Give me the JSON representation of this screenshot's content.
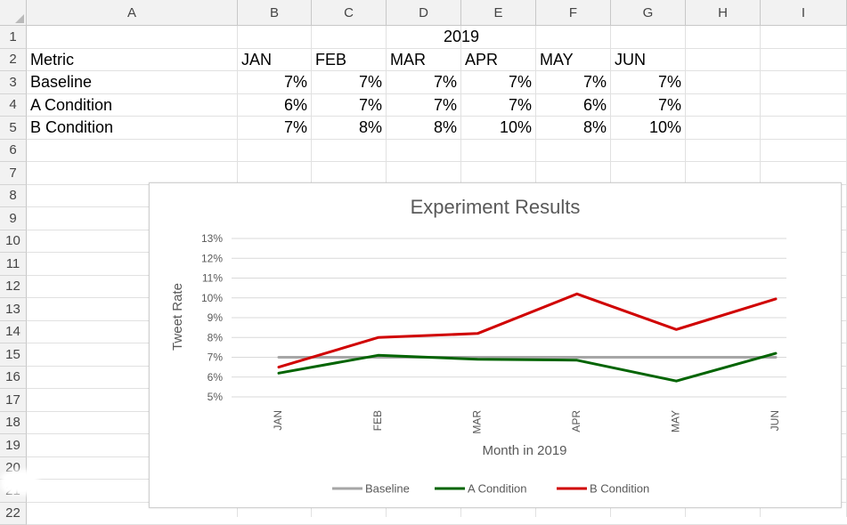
{
  "sheet": {
    "columns": [
      "A",
      "B",
      "C",
      "D",
      "E",
      "F",
      "G",
      "H",
      "I"
    ],
    "rows": [
      "1",
      "2",
      "3",
      "4",
      "5",
      "6",
      "7",
      "8",
      "9",
      "10",
      "11",
      "12",
      "13",
      "14",
      "15",
      "16",
      "17",
      "18",
      "19",
      "20",
      "21",
      "22"
    ],
    "year_title": "2019",
    "header_label": "Metric",
    "months": [
      "JAN",
      "FEB",
      "MAR",
      "APR",
      "MAY",
      "JUN"
    ],
    "data_rows": [
      {
        "label": "Baseline",
        "values": [
          "7%",
          "7%",
          "7%",
          "7%",
          "7%",
          "7%"
        ]
      },
      {
        "label": "A Condition",
        "values": [
          "6%",
          "7%",
          "7%",
          "7%",
          "6%",
          "7%"
        ]
      },
      {
        "label": "B Condition",
        "values": [
          "7%",
          "8%",
          "8%",
          "10%",
          "8%",
          "10%"
        ]
      }
    ]
  },
  "chart_data": {
    "type": "line",
    "title": "Experiment Results",
    "xlabel": "Month in 2019",
    "ylabel": "Tweet Rate",
    "categories": [
      "JAN",
      "FEB",
      "MAR",
      "APR",
      "MAY",
      "JUN"
    ],
    "yticks": [
      "5%",
      "6%",
      "7%",
      "8%",
      "9%",
      "10%",
      "11%",
      "12%",
      "13%"
    ],
    "ylim": [
      5,
      13
    ],
    "grid": true,
    "legend_position": "bottom",
    "series": [
      {
        "name": "Baseline",
        "color": "#a6a6a6",
        "values": [
          7.0,
          7.0,
          7.0,
          7.0,
          7.0,
          7.0
        ]
      },
      {
        "name": "A Condition",
        "color": "#006400",
        "values": [
          6.2,
          7.1,
          6.9,
          6.85,
          5.8,
          7.2
        ]
      },
      {
        "name": "B Condition",
        "color": "#d00000",
        "values": [
          6.5,
          8.0,
          8.2,
          10.2,
          8.4,
          9.95
        ]
      }
    ]
  }
}
